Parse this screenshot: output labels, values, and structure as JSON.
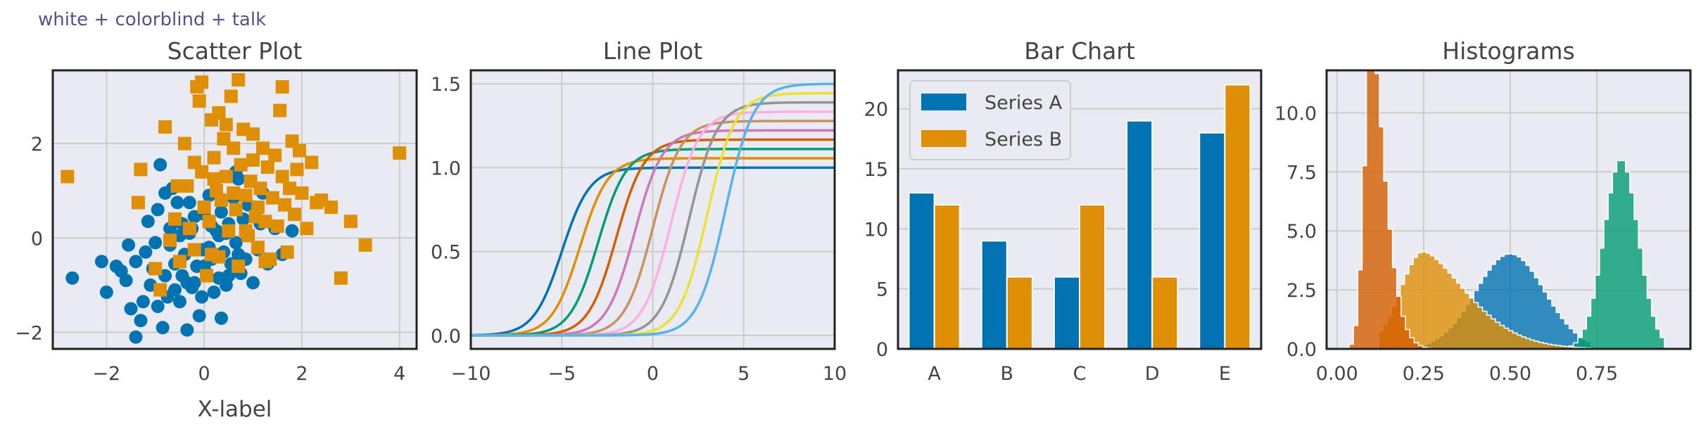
{
  "figure": {
    "suptitle": "white + colorblind + talk"
  },
  "colors": {
    "palette": [
      "#0173b2",
      "#de8f05",
      "#029e73",
      "#d55e00",
      "#cc78bc",
      "#ca9161",
      "#fbafe4",
      "#949494",
      "#ece133",
      "#56b4e9"
    ],
    "axes_bg": "#eaeaf2",
    "grid": "#cccccc",
    "spine": "#222222"
  },
  "chart_data": [
    {
      "type": "scatter",
      "title": "Scatter Plot",
      "xlabel": "X-label",
      "ylabel": "",
      "xlim": [
        -3.1,
        4.35
      ],
      "ylim": [
        -2.35,
        3.55
      ],
      "xticks": [
        -2,
        0,
        2,
        4
      ],
      "yticks": [
        -2,
        0,
        2
      ],
      "xtick_labels": [
        "−2",
        "0",
        "2",
        "4"
      ],
      "ytick_labels": [
        "−2",
        "0",
        "2"
      ],
      "grid": true,
      "series": [
        {
          "marker": "circle",
          "color": "#0173b2",
          "points": [
            [
              -2.7,
              -0.85
            ],
            [
              -2.0,
              -1.15
            ],
            [
              -2.1,
              -0.5
            ],
            [
              -1.7,
              -0.7
            ],
            [
              -1.6,
              -0.9
            ],
            [
              -1.5,
              -1.5
            ],
            [
              -1.4,
              -2.1
            ],
            [
              -1.3,
              -1.75
            ],
            [
              -1.2,
              -0.3
            ],
            [
              -1.1,
              -1.0
            ],
            [
              -1.0,
              -0.1
            ],
            [
              -0.95,
              0.6
            ],
            [
              -0.9,
              1.55
            ],
            [
              -0.85,
              -1.9
            ],
            [
              -0.8,
              -0.8
            ],
            [
              -0.75,
              -1.25
            ],
            [
              -0.7,
              0.2
            ],
            [
              -0.65,
              1.05
            ],
            [
              -0.6,
              -0.55
            ],
            [
              -0.55,
              0.75
            ],
            [
              -0.5,
              -1.35
            ],
            [
              -0.45,
              0.3
            ],
            [
              -0.4,
              -0.35
            ],
            [
              -0.35,
              -0.95
            ],
            [
              -0.3,
              0.1
            ],
            [
              -0.25,
              -1.05
            ],
            [
              -0.2,
              0.45
            ],
            [
              -0.15,
              -0.6
            ],
            [
              -0.1,
              -1.65
            ],
            [
              -0.05,
              -0.25
            ],
            [
              0.0,
              0.5
            ],
            [
              0.05,
              -0.75
            ],
            [
              0.1,
              0.9
            ],
            [
              0.15,
              -0.45
            ],
            [
              0.2,
              -1.15
            ],
            [
              0.25,
              0.15
            ],
            [
              0.3,
              -0.85
            ],
            [
              0.35,
              0.55
            ],
            [
              0.4,
              -0.3
            ],
            [
              0.45,
              -1.0
            ],
            [
              0.5,
              0.3
            ],
            [
              0.55,
              -0.55
            ],
            [
              0.6,
              0.85
            ],
            [
              0.65,
              -0.1
            ],
            [
              0.7,
              1.25
            ],
            [
              0.75,
              -0.75
            ],
            [
              0.8,
              0.4
            ],
            [
              0.85,
              -0.45
            ],
            [
              0.9,
              0.05
            ],
            [
              1.0,
              -0.95
            ],
            [
              1.05,
              0.65
            ],
            [
              1.1,
              -0.25
            ],
            [
              1.2,
              0.95
            ],
            [
              1.3,
              -0.55
            ],
            [
              1.45,
              0.2
            ],
            [
              1.6,
              -0.35
            ],
            [
              1.8,
              0.15
            ],
            [
              -1.4,
              -0.5
            ],
            [
              -1.25,
              -1.35
            ],
            [
              -1.05,
              -0.65
            ],
            [
              -0.95,
              -1.45
            ],
            [
              -0.8,
              0.95
            ],
            [
              -0.6,
              -1.1
            ],
            [
              -0.45,
              -0.8
            ],
            [
              -0.3,
              0.75
            ],
            [
              -0.2,
              -0.95
            ],
            [
              0.0,
              -0.6
            ],
            [
              0.1,
              -0.2
            ],
            [
              0.3,
              0.05
            ],
            [
              0.5,
              -0.8
            ],
            [
              0.7,
              -0.35
            ],
            [
              0.9,
              0.7
            ],
            [
              -1.55,
              -0.15
            ],
            [
              -1.15,
              0.35
            ],
            [
              -0.7,
              -0.15
            ],
            [
              -0.5,
              0.05
            ],
            [
              -0.25,
              0.2
            ],
            [
              0.15,
              0.25
            ],
            [
              0.45,
              0.1
            ],
            [
              0.65,
              1.4
            ],
            [
              -0.05,
              -1.25
            ],
            [
              -0.35,
              -1.95
            ],
            [
              0.35,
              -1.7
            ],
            [
              -1.8,
              -0.6
            ],
            [
              1.15,
              0.3
            ]
          ]
        },
        {
          "marker": "square",
          "color": "#de8f05",
          "points": [
            [
              -2.8,
              1.3
            ],
            [
              -1.35,
              0.75
            ],
            [
              -1.0,
              -0.65
            ],
            [
              -0.9,
              -1.1
            ],
            [
              -0.7,
              -0.05
            ],
            [
              -0.6,
              0.4
            ],
            [
              -0.5,
              -0.5
            ],
            [
              -0.4,
              2.0
            ],
            [
              -0.35,
              1.1
            ],
            [
              -0.3,
              0.2
            ],
            [
              -0.2,
              -0.25
            ],
            [
              -0.15,
              3.2
            ],
            [
              -0.1,
              2.9
            ],
            [
              -0.05,
              1.4
            ],
            [
              0.0,
              0.65
            ],
            [
              0.05,
              -0.8
            ],
            [
              0.1,
              0.35
            ],
            [
              0.15,
              2.5
            ],
            [
              0.2,
              1.7
            ],
            [
              0.25,
              1.0
            ],
            [
              0.3,
              -0.4
            ],
            [
              0.35,
              0.8
            ],
            [
              0.4,
              2.1
            ],
            [
              0.45,
              1.3
            ],
            [
              0.5,
              0.15
            ],
            [
              0.55,
              3.0
            ],
            [
              0.6,
              1.9
            ],
            [
              0.65,
              0.6
            ],
            [
              0.7,
              -0.6
            ],
            [
              0.75,
              1.55
            ],
            [
              0.8,
              2.3
            ],
            [
              0.85,
              0.9
            ],
            [
              0.9,
              0.05
            ],
            [
              0.95,
              1.2
            ],
            [
              1.0,
              2.2
            ],
            [
              1.05,
              0.45
            ],
            [
              1.1,
              -0.2
            ],
            [
              1.15,
              1.05
            ],
            [
              1.2,
              1.9
            ],
            [
              1.25,
              0.35
            ],
            [
              1.3,
              1.5
            ],
            [
              1.35,
              -0.45
            ],
            [
              1.4,
              0.85
            ],
            [
              1.45,
              1.75
            ],
            [
              1.5,
              0.25
            ],
            [
              1.55,
              2.7
            ],
            [
              1.6,
              1.3
            ],
            [
              1.65,
              0.7
            ],
            [
              1.7,
              -0.3
            ],
            [
              1.75,
              1.05
            ],
            [
              1.8,
              2.05
            ],
            [
              1.85,
              0.5
            ],
            [
              1.9,
              1.45
            ],
            [
              2.0,
              0.95
            ],
            [
              2.1,
              0.2
            ],
            [
              2.2,
              1.6
            ],
            [
              2.3,
              0.75
            ],
            [
              2.4,
              0.8
            ],
            [
              2.6,
              0.65
            ],
            [
              2.8,
              -0.85
            ],
            [
              3.0,
              0.35
            ],
            [
              3.3,
              -0.15
            ],
            [
              4.0,
              1.8
            ],
            [
              0.7,
              3.35
            ],
            [
              1.6,
              3.2
            ],
            [
              -1.3,
              1.45
            ],
            [
              -0.8,
              2.35
            ],
            [
              -0.2,
              1.6
            ],
            [
              0.3,
              2.65
            ],
            [
              1.0,
              1.65
            ],
            [
              -0.55,
              1.1
            ],
            [
              0.15,
              -0.35
            ],
            [
              0.85,
              0.15
            ],
            [
              1.25,
              -0.5
            ],
            [
              0.45,
              2.4
            ],
            [
              -0.05,
              3.3
            ],
            [
              1.95,
              1.85
            ],
            [
              0.6,
              0.95
            ],
            [
              1.1,
              0.65
            ],
            [
              0.2,
              1.25
            ]
          ]
        }
      ]
    },
    {
      "type": "line",
      "title": "Line Plot",
      "xlabel": "",
      "ylabel": "",
      "xlim": [
        -10,
        10
      ],
      "ylim": [
        -0.08,
        1.58
      ],
      "xticks": [
        -10,
        -5,
        0,
        5,
        10
      ],
      "yticks": [
        0.0,
        0.5,
        1.0,
        1.5
      ],
      "xtick_labels": [
        "−10",
        "−5",
        "0",
        "5",
        "10"
      ],
      "ytick_labels": [
        "0.0",
        "0.5",
        "1.0",
        "1.5"
      ],
      "grid": true,
      "series": [
        {
          "function": "logistic",
          "center": -5,
          "height": 1.0,
          "color": "#0173b2"
        },
        {
          "function": "logistic",
          "center": -4,
          "height": 1.056,
          "color": "#de8f05"
        },
        {
          "function": "logistic",
          "center": -3,
          "height": 1.111,
          "color": "#029e73"
        },
        {
          "function": "logistic",
          "center": -2,
          "height": 1.167,
          "color": "#d55e00"
        },
        {
          "function": "logistic",
          "center": -1,
          "height": 1.222,
          "color": "#cc78bc"
        },
        {
          "function": "logistic",
          "center": 0,
          "height": 1.278,
          "color": "#ca9161"
        },
        {
          "function": "logistic",
          "center": 1,
          "height": 1.333,
          "color": "#fbafe4"
        },
        {
          "function": "logistic",
          "center": 2,
          "height": 1.389,
          "color": "#949494"
        },
        {
          "function": "logistic",
          "center": 3,
          "height": 1.444,
          "color": "#ece133"
        },
        {
          "function": "logistic",
          "center": 4,
          "height": 1.5,
          "color": "#56b4e9"
        }
      ]
    },
    {
      "type": "bar",
      "title": "Bar Chart",
      "xlabel": "",
      "ylabel": "",
      "categories": [
        "A",
        "B",
        "C",
        "D",
        "E"
      ],
      "ylim": [
        0,
        23.2
      ],
      "yticks": [
        0,
        5,
        10,
        15,
        20
      ],
      "ytick_labels": [
        "0",
        "5",
        "10",
        "15",
        "20"
      ],
      "grid": true,
      "legend_position": "top-left",
      "series": [
        {
          "name": "Series A",
          "values": [
            13,
            9,
            6,
            19,
            18
          ],
          "color": "#0173b2"
        },
        {
          "name": "Series B",
          "values": [
            12,
            6,
            12,
            6,
            22
          ],
          "color": "#de8f05"
        }
      ]
    },
    {
      "type": "histogram",
      "title": "Histograms",
      "xlabel": "",
      "ylabel": "",
      "xlim": [
        -0.03,
        1.02
      ],
      "ylim": [
        0,
        11.8
      ],
      "xticks": [
        0.0,
        0.25,
        0.5,
        0.75
      ],
      "yticks": [
        0.0,
        2.5,
        5.0,
        7.5,
        10.0
      ],
      "xtick_labels": [
        "0.00",
        "0.25",
        "0.50",
        "0.75"
      ],
      "ytick_labels": [
        "0.0",
        "2.5",
        "5.0",
        "7.5",
        "10.0"
      ],
      "grid": true,
      "series": [
        {
          "distribution": "normal",
          "mean": 0.5,
          "sd": 0.1,
          "range": [
            0.17,
            0.72
          ],
          "color": "#0173b2",
          "alpha": 0.8
        },
        {
          "distribution": "normal",
          "mean": 0.82,
          "sd": 0.05,
          "range": [
            0.67,
            0.94
          ],
          "color": "#029e73",
          "alpha": 0.8
        },
        {
          "distribution": "skewed",
          "mean": 0.25,
          "sd": 0.1,
          "range": [
            0.12,
            0.72
          ],
          "color": "#de8f05",
          "alpha": 0.8
        },
        {
          "distribution": "skewed",
          "mean": 0.1,
          "sd": 0.03,
          "range": [
            0.01,
            0.41
          ],
          "color": "#d55e00",
          "alpha": 0.8
        }
      ]
    }
  ]
}
